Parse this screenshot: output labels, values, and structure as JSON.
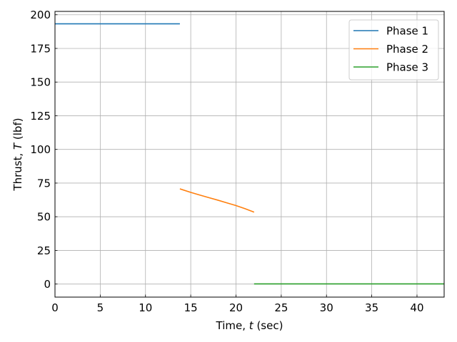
{
  "chart_data": {
    "type": "line",
    "title": "",
    "xlabel_parts": [
      "Time, ",
      "t",
      " (sec)"
    ],
    "ylabel_parts": [
      "Thrust, ",
      "T",
      " (lbf)"
    ],
    "xlim": [
      0,
      43
    ],
    "ylim": [
      -9.7,
      202.5
    ],
    "xticks": [
      0,
      5,
      10,
      15,
      20,
      25,
      30,
      35,
      40
    ],
    "yticks": [
      0,
      25,
      50,
      75,
      100,
      125,
      150,
      175,
      200
    ],
    "grid": true,
    "legend_position": "top-right",
    "series": [
      {
        "name": "Phase 1",
        "color": "#1f77b4",
        "points": [
          [
            0,
            193.3
          ],
          [
            13.8,
            193.3
          ]
        ]
      },
      {
        "name": "Phase 2",
        "color": "#ff7f0e",
        "points": [
          [
            13.8,
            70.7
          ],
          [
            15,
            68.1
          ],
          [
            16,
            66.1
          ],
          [
            17,
            64.2
          ],
          [
            18,
            62.3
          ],
          [
            19,
            60.3
          ],
          [
            20,
            58.3
          ],
          [
            21,
            56.0
          ],
          [
            22,
            53.4
          ]
        ]
      },
      {
        "name": "Phase 3",
        "color": "#2ca02c",
        "points": [
          [
            22,
            0.1
          ],
          [
            43,
            0.1
          ]
        ]
      }
    ]
  }
}
